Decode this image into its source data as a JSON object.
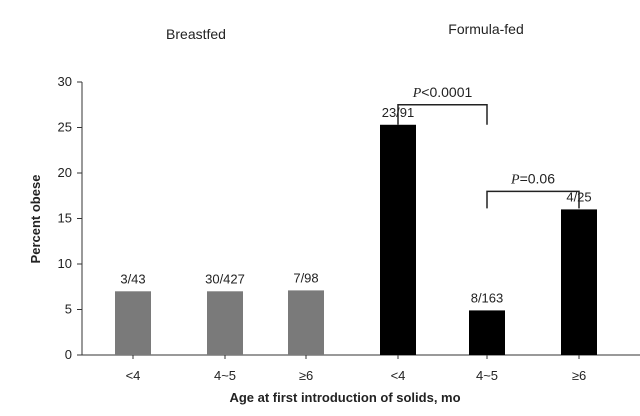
{
  "chart_data": {
    "type": "bar",
    "xlabel": "Age at first introduction of solids, mo",
    "ylabel": "Percent obese",
    "ylim": [
      0,
      30
    ],
    "yticks": [
      "0",
      "5",
      "10",
      "15",
      "20",
      "25",
      "30"
    ],
    "group_labels": [
      "Breastfed",
      "Formula-fed"
    ],
    "categories": [
      "<4",
      "4~5",
      "≥6",
      "<4",
      "4~5",
      "≥6"
    ],
    "values": [
      7.0,
      7.0,
      7.1,
      25.3,
      4.9,
      16.0
    ],
    "data_labels": [
      "3/43",
      "30/427",
      "7/98",
      "23/91",
      "8/163",
      "4/25"
    ],
    "colors": [
      "#7a7a7a",
      "#7a7a7a",
      "#7a7a7a",
      "#000000",
      "#000000",
      "#000000"
    ],
    "annotations": [
      {
        "p": "P",
        "text": "<0.0001",
        "from": 3,
        "to": 4
      },
      {
        "p": "P",
        "text": "=0.06",
        "from": 4,
        "to": 5
      }
    ],
    "grid": false,
    "legend": "none"
  }
}
